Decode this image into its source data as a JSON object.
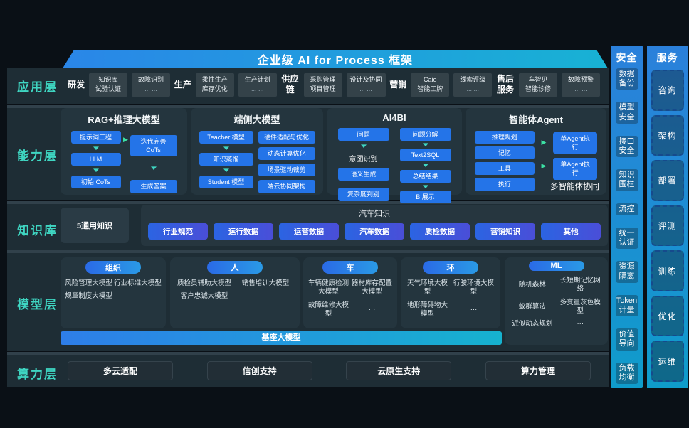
{
  "colors": {
    "stage_bg": "#0a1016",
    "band_bg": "#1e2d35",
    "sep_bg": "#31414b",
    "panel_bg": "#24353e",
    "box_blue": "#2474e8",
    "accent_teal": "#3fd6c2",
    "accent_green": "#3ce0a4",
    "pill_a": "#2b64e2",
    "pill_b": "#4a4ed8",
    "banner_a": "#2a86e8",
    "banner_b": "#18b2d4",
    "base_a": "#2e7ee9",
    "base_b": "#16b2cf",
    "col_a": "#2b80db",
    "col_b": "#0f9ccb",
    "btn_bg": "#222e36"
  },
  "banner": {
    "title": "企业级 AI for Process 框架"
  },
  "layer_labels": {
    "application": "应用层",
    "capability": "能力层",
    "knowledge": "知识库",
    "model": "模型层",
    "compute": "算力层"
  },
  "application": {
    "groups": [
      {
        "name": "研发",
        "box1": [
          "知识库",
          "试验认证"
        ],
        "box2": [
          "故障识别",
          "... ..."
        ]
      },
      {
        "name": "生产",
        "box1": [
          "柔性生产",
          "库存优化"
        ],
        "box2": [
          "生产计划",
          "... ..."
        ]
      },
      {
        "name": "供应链",
        "box1": [
          "采购管理",
          "项目管理"
        ],
        "box2": [
          "设计及协同",
          "... ..."
        ]
      },
      {
        "name": "营销",
        "box1": [
          "Caio",
          "智能工牌"
        ],
        "box2": [
          "线索评级",
          "... ..."
        ]
      },
      {
        "name": "售后服务",
        "box1": [
          "车智见",
          "智能诊修"
        ],
        "box2": [
          "故障预警",
          "... ..."
        ]
      }
    ]
  },
  "capability": {
    "panels": [
      {
        "title": "RAG+推理大模型",
        "flow_left": [
          "提示词工程",
          "LLM",
          "初始 CoTs"
        ],
        "flow_right": [
          "迭代完善CoTs",
          "生成答案"
        ]
      },
      {
        "title": "端侧大模型",
        "flow_left": [
          "Teacher 模型",
          "知识蒸馏",
          "Student 模型"
        ],
        "stack_right": [
          "硬件适配与优化",
          "动态计算优化",
          "场景驱动裁剪",
          "端云协同架构"
        ]
      },
      {
        "title": "AI4BI",
        "flow_left": [
          "问题",
          "意图识别",
          "语义生成",
          "复杂度判别"
        ],
        "flow_right": [
          "问题分解",
          "Text2SQL",
          "总结结果",
          "BI展示"
        ]
      },
      {
        "title": "智能体Agent",
        "stack_left": [
          "推理规划",
          "记忆",
          "工具",
          "执行"
        ],
        "stack_right": [
          "单Agent执行",
          "单Agent执行"
        ],
        "caption": "多智能体协同"
      }
    ]
  },
  "knowledge": {
    "general": "5通用知识",
    "auto_title": "汽车知识",
    "pills": [
      "行业规范",
      "运行数据",
      "运营数据",
      "汽车数据",
      "质检数据",
      "营销知识",
      "其他"
    ]
  },
  "model": {
    "groups": [
      {
        "header": "组织",
        "items": [
          "风险管理大模型",
          "行业标准大模型",
          "规章制度大模型",
          "···"
        ]
      },
      {
        "header": "人",
        "items": [
          "质检员辅助大模型",
          "销售培训大模型",
          "客户忠诚大模型",
          "···"
        ]
      },
      {
        "header": "车",
        "items": [
          "车辆健康检测大模型",
          "器材库存配置大模型",
          "故障维修大模型",
          "···"
        ]
      },
      {
        "header": "环",
        "items": [
          "天气环境大模型",
          "行驶环境大模型",
          "地形障碍物大模型",
          "···"
        ]
      },
      {
        "header": "ML",
        "items": [
          "随机森林",
          "长短期记忆网络",
          "蚁群算法",
          "多变量灰色模型",
          "近似动态规划",
          "···"
        ]
      }
    ],
    "base_bar": "基座大模型"
  },
  "compute": {
    "buttons": [
      "多云适配",
      "信创支持",
      "云原生支持",
      "算力管理"
    ]
  },
  "security": {
    "title": "安全",
    "items": [
      "数据备份",
      "模型安全",
      "接口安全",
      "知识围栏",
      "流控",
      "统一认证",
      "资源隔离",
      "Token计量",
      "价值导向",
      "负载均衡"
    ]
  },
  "services": {
    "title": "服务",
    "items": [
      "咨询",
      "架构",
      "部署",
      "评测",
      "训练",
      "优化",
      "运维"
    ]
  }
}
